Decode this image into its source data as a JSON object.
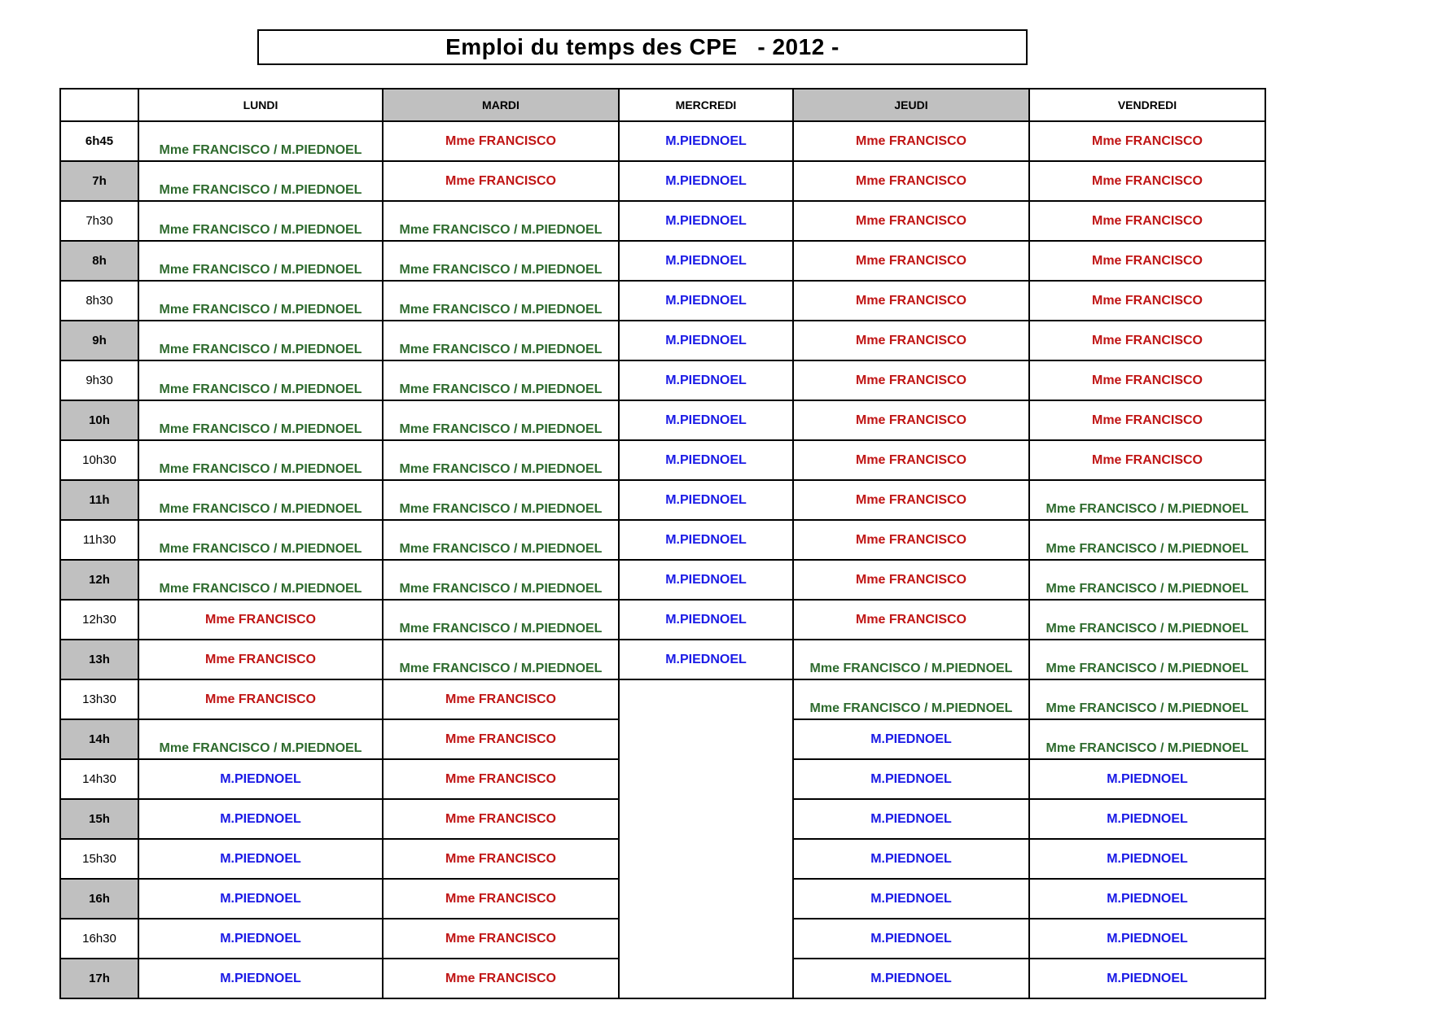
{
  "title": "Emploi du temps des CPE   - 2012 -",
  "table": {
    "day_headers": [
      {
        "label": "LUNDI",
        "shaded": false
      },
      {
        "label": "MARDI",
        "shaded": true
      },
      {
        "label": "MERCREDI",
        "shaded": false
      },
      {
        "label": "JEUDI",
        "shaded": true
      },
      {
        "label": "VENDREDI",
        "shaded": false
      }
    ],
    "people": {
      "FP": {
        "label": "Mme FRANCISCO / M.PIEDNOEL",
        "color": "#2e6b2e",
        "align": "bottom"
      },
      "F": {
        "label": "Mme FRANCISCO",
        "color": "#c01515",
        "align": "middle"
      },
      "P": {
        "label": "M.PIEDNOEL",
        "color": "#1a1ae6",
        "align": "middle"
      }
    },
    "colors": {
      "shaded_bg": "#c0c0c0",
      "border": "#000000"
    },
    "rows": [
      {
        "time": "6h45",
        "bold": true,
        "shaded": false,
        "cells": [
          "FP",
          "F",
          "P",
          "F",
          "F"
        ]
      },
      {
        "time": "7h",
        "bold": true,
        "shaded": true,
        "cells": [
          "FP",
          "F",
          "P",
          "F",
          "F"
        ]
      },
      {
        "time": "7h30",
        "bold": false,
        "shaded": false,
        "cells": [
          "FP",
          "FP",
          "P",
          "F",
          "F"
        ]
      },
      {
        "time": "8h",
        "bold": true,
        "shaded": true,
        "cells": [
          "FP",
          "FP",
          "P",
          "F",
          "F"
        ]
      },
      {
        "time": "8h30",
        "bold": false,
        "shaded": false,
        "cells": [
          "FP",
          "FP",
          "P",
          "F",
          "F"
        ]
      },
      {
        "time": "9h",
        "bold": true,
        "shaded": true,
        "cells": [
          "FP",
          "FP",
          "P",
          "F",
          "F"
        ]
      },
      {
        "time": "9h30",
        "bold": false,
        "shaded": false,
        "cells": [
          "FP",
          "FP",
          "P",
          "F",
          "F"
        ]
      },
      {
        "time": "10h",
        "bold": true,
        "shaded": true,
        "cells": [
          "FP",
          "FP",
          "P",
          "F",
          "F"
        ]
      },
      {
        "time": "10h30",
        "bold": false,
        "shaded": false,
        "cells": [
          "FP",
          "FP",
          "P",
          "F",
          "F"
        ]
      },
      {
        "time": "11h",
        "bold": true,
        "shaded": true,
        "cells": [
          "FP",
          "FP",
          "P",
          "F",
          "FP"
        ]
      },
      {
        "time": "11h30",
        "bold": false,
        "shaded": false,
        "cells": [
          "FP",
          "FP",
          "P",
          "F",
          "FP"
        ]
      },
      {
        "time": "12h",
        "bold": true,
        "shaded": true,
        "cells": [
          "FP",
          "FP",
          "P",
          "F",
          "FP"
        ]
      },
      {
        "time": "12h30",
        "bold": false,
        "shaded": false,
        "cells": [
          "F",
          "FP",
          "P",
          "F",
          "FP"
        ]
      },
      {
        "time": "13h",
        "bold": true,
        "shaded": true,
        "cells": [
          "F",
          "FP",
          "P",
          "FP",
          "FP"
        ]
      },
      {
        "time": "13h30",
        "bold": false,
        "shaded": false,
        "cells": [
          "F",
          "F",
          {
            "empty": true,
            "rowspan": 8
          },
          "FP",
          "FP"
        ]
      },
      {
        "time": "14h",
        "bold": true,
        "shaded": true,
        "cells": [
          "FP",
          "F",
          null,
          "P",
          "FP"
        ]
      },
      {
        "time": "14h30",
        "bold": false,
        "shaded": false,
        "cells": [
          "P",
          "F",
          null,
          "P",
          "P"
        ]
      },
      {
        "time": "15h",
        "bold": true,
        "shaded": true,
        "cells": [
          "P",
          "F",
          null,
          "P",
          "P"
        ]
      },
      {
        "time": "15h30",
        "bold": false,
        "shaded": false,
        "cells": [
          "P",
          "F",
          null,
          "P",
          "P"
        ]
      },
      {
        "time": "16h",
        "bold": true,
        "shaded": true,
        "cells": [
          "P",
          "F",
          null,
          "P",
          "P"
        ]
      },
      {
        "time": "16h30",
        "bold": false,
        "shaded": false,
        "cells": [
          "P",
          "F",
          null,
          "P",
          "P"
        ]
      },
      {
        "time": "17h",
        "bold": true,
        "shaded": true,
        "cells": [
          "P",
          "F",
          null,
          "P",
          "P"
        ]
      }
    ]
  }
}
